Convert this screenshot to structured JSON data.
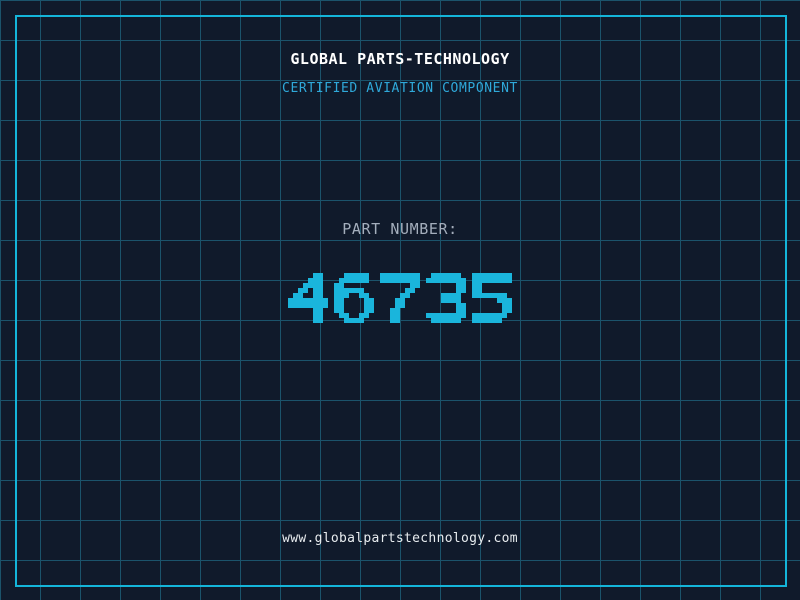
{
  "header": {
    "title": "GLOBAL PARTS-TECHNOLOGY",
    "subtitle": "CERTIFIED AVIATION COMPONENT"
  },
  "part": {
    "label": "PART NUMBER:",
    "number": "46735"
  },
  "footer": {
    "url": "www.globalpartstechnology.com"
  },
  "colors": {
    "background": "#101a2b",
    "grid_line": "#1b536b",
    "frame": "#14b5da",
    "title": "#ffffff",
    "subtitle": "#2fa9da",
    "label": "#a4aebc",
    "number": "#1ab5dc",
    "url": "#e8ecef"
  }
}
